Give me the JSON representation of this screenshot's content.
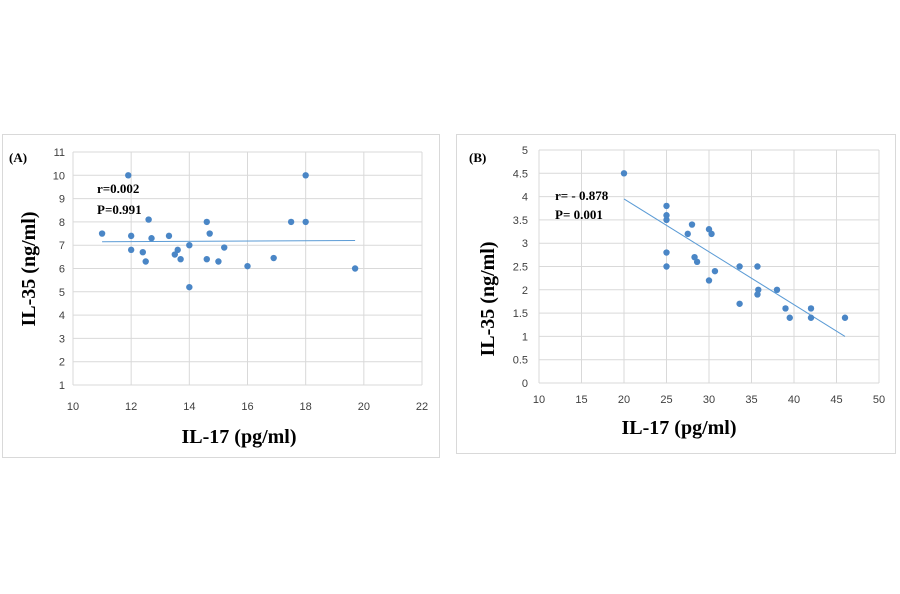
{
  "colors": {
    "point": "#4a86c6",
    "trendline": "#5b9bd5",
    "grid": "#d9d9d9"
  },
  "chart_data": [
    {
      "type": "scatter",
      "panel_label": "(A)",
      "xlabel": "IL-17 (pg/ml)",
      "ylabel": "IL-35 (ng/ml)",
      "xlim": [
        10,
        22
      ],
      "ylim": [
        1,
        11
      ],
      "xticks": [
        10,
        12,
        14,
        16,
        18,
        20,
        22
      ],
      "yticks": [
        1,
        2,
        3,
        4,
        5,
        6,
        7,
        8,
        9,
        10,
        11
      ],
      "grid": true,
      "stats": [
        "r=0.002",
        "P=0.991"
      ],
      "trendline": {
        "x": [
          11,
          19.7
        ],
        "y": [
          7.15,
          7.2
        ]
      },
      "points": [
        {
          "x": 11.0,
          "y": 7.5
        },
        {
          "x": 11.9,
          "y": 10.0
        },
        {
          "x": 12.0,
          "y": 7.4
        },
        {
          "x": 12.0,
          "y": 6.8
        },
        {
          "x": 12.4,
          "y": 6.7
        },
        {
          "x": 12.5,
          "y": 6.3
        },
        {
          "x": 12.6,
          "y": 8.1
        },
        {
          "x": 12.7,
          "y": 7.3
        },
        {
          "x": 13.3,
          "y": 7.4
        },
        {
          "x": 13.5,
          "y": 6.6
        },
        {
          "x": 13.6,
          "y": 6.8
        },
        {
          "x": 13.7,
          "y": 6.4
        },
        {
          "x": 14.0,
          "y": 7.0
        },
        {
          "x": 14.0,
          "y": 5.2
        },
        {
          "x": 14.6,
          "y": 8.0
        },
        {
          "x": 14.6,
          "y": 6.4
        },
        {
          "x": 14.7,
          "y": 7.5
        },
        {
          "x": 15.0,
          "y": 6.3
        },
        {
          "x": 15.2,
          "y": 6.9
        },
        {
          "x": 16.0,
          "y": 6.1
        },
        {
          "x": 16.9,
          "y": 6.45
        },
        {
          "x": 17.5,
          "y": 8.0
        },
        {
          "x": 18.0,
          "y": 10.0
        },
        {
          "x": 18.0,
          "y": 8.0
        },
        {
          "x": 19.7,
          "y": 6.0
        }
      ]
    },
    {
      "type": "scatter",
      "panel_label": "(B)",
      "xlabel": "IL-17 (pg/ml)",
      "ylabel": "IL-35 (ng/ml)",
      "xlim": [
        10,
        50
      ],
      "ylim": [
        0,
        5
      ],
      "xticks": [
        10,
        15,
        20,
        25,
        30,
        35,
        40,
        45,
        50
      ],
      "yticks": [
        0,
        0.5,
        1,
        1.5,
        2,
        2.5,
        3,
        3.5,
        4,
        4.5,
        5
      ],
      "grid": true,
      "stats": [
        "r= - 0.878",
        "P=  0.001"
      ],
      "trendline": {
        "x": [
          20,
          46
        ],
        "y": [
          3.95,
          1.0
        ]
      },
      "points": [
        {
          "x": 20.0,
          "y": 4.5
        },
        {
          "x": 25.0,
          "y": 3.8
        },
        {
          "x": 25.0,
          "y": 3.6
        },
        {
          "x": 25.0,
          "y": 3.5
        },
        {
          "x": 25.0,
          "y": 2.8
        },
        {
          "x": 25.0,
          "y": 2.5
        },
        {
          "x": 27.5,
          "y": 3.2
        },
        {
          "x": 28.0,
          "y": 3.4
        },
        {
          "x": 28.3,
          "y": 2.7
        },
        {
          "x": 28.6,
          "y": 2.6
        },
        {
          "x": 30.0,
          "y": 3.3
        },
        {
          "x": 30.3,
          "y": 3.2
        },
        {
          "x": 30.0,
          "y": 2.2
        },
        {
          "x": 30.7,
          "y": 2.4
        },
        {
          "x": 33.6,
          "y": 2.5
        },
        {
          "x": 33.6,
          "y": 1.7
        },
        {
          "x": 35.7,
          "y": 2.5
        },
        {
          "x": 35.8,
          "y": 2.0
        },
        {
          "x": 35.7,
          "y": 1.9
        },
        {
          "x": 38.0,
          "y": 2.0
        },
        {
          "x": 39.0,
          "y": 1.6
        },
        {
          "x": 39.5,
          "y": 1.4
        },
        {
          "x": 42.0,
          "y": 1.6
        },
        {
          "x": 42.0,
          "y": 1.4
        },
        {
          "x": 46.0,
          "y": 1.4
        }
      ]
    }
  ]
}
